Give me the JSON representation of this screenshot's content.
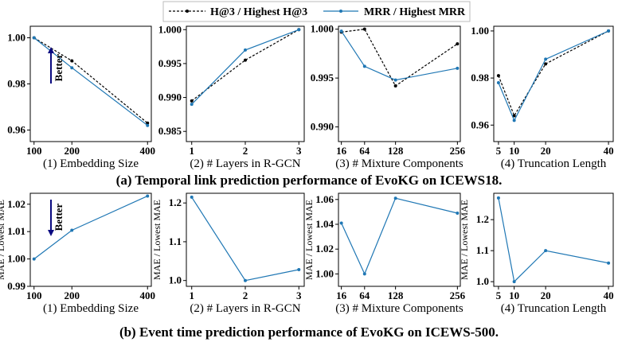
{
  "legend": {
    "black_series": "H@3 / Highest H@3",
    "blue_series": "MRR / Highest MRR"
  },
  "colors": {
    "black": "#000000",
    "blue": "#1f77b4",
    "arrow": "#0a0a80"
  },
  "better_label": "Better",
  "captions": {
    "top": "(a) Temporal link prediction performance of EvoKG on ICEWS18.",
    "bottom": "(b) Event time prediction performance of EvoKG on ICEWS-500."
  },
  "chart_data": [
    {
      "type": "line",
      "row": "a",
      "xlabel": "(1) Embedding Size",
      "ylabel": "",
      "x": [
        100,
        200,
        400
      ],
      "x_ticks": [
        "100",
        "200",
        "400"
      ],
      "xlim": [
        90,
        410
      ],
      "ylim": [
        0.955,
        1.005
      ],
      "y_ticks": [
        "0.96",
        "0.98",
        "1.00"
      ],
      "series": [
        {
          "name": "H@3 / Highest H@3",
          "style": "dashed-black",
          "values": [
            1.0,
            0.99,
            0.963
          ]
        },
        {
          "name": "MRR / Highest MRR",
          "style": "solid-blue",
          "values": [
            1.0,
            0.987,
            0.962
          ]
        }
      ],
      "better_arrow": "up"
    },
    {
      "type": "line",
      "row": "a",
      "xlabel": "(2) # Layers in R-GCN",
      "ylabel": "",
      "x": [
        1,
        2,
        3
      ],
      "x_ticks": [
        "1",
        "2",
        "3"
      ],
      "xlim": [
        0.9,
        3.1
      ],
      "ylim": [
        0.9835,
        1.0005
      ],
      "y_ticks": [
        "0.985",
        "0.990",
        "0.995",
        "1.000"
      ],
      "series": [
        {
          "name": "H@3 / Highest H@3",
          "style": "dashed-black",
          "values": [
            0.9895,
            0.9955,
            1.0
          ]
        },
        {
          "name": "MRR / Highest MRR",
          "style": "solid-blue",
          "values": [
            0.989,
            0.997,
            1.0
          ]
        }
      ]
    },
    {
      "type": "line",
      "row": "a",
      "xlabel": "(3) # Mixture Components",
      "ylabel": "",
      "x": [
        16,
        64,
        128,
        256
      ],
      "x_ticks": [
        "16",
        "64",
        "128",
        "256"
      ],
      "xlim": [
        10,
        262
      ],
      "ylim": [
        0.9885,
        1.0003
      ],
      "y_ticks": [
        "0.990",
        "0.995",
        "1.000"
      ],
      "series": [
        {
          "name": "H@3 / Highest H@3",
          "style": "dashed-black",
          "values": [
            0.9997,
            1.0,
            0.9942,
            0.9985
          ]
        },
        {
          "name": "MRR / Highest MRR",
          "style": "solid-blue",
          "values": [
            0.9998,
            0.9962,
            0.9948,
            0.996
          ]
        }
      ]
    },
    {
      "type": "line",
      "row": "a",
      "xlabel": "(4) Truncation Length",
      "ylabel": "",
      "x": [
        5,
        10,
        20,
        40
      ],
      "x_ticks": [
        "5",
        "10",
        "20",
        "40"
      ],
      "xlim": [
        3.5,
        41.5
      ],
      "ylim": [
        0.953,
        1.002
      ],
      "y_ticks": [
        "0.96",
        "0.98",
        "1.00"
      ],
      "series": [
        {
          "name": "H@3 / Highest H@3",
          "style": "dashed-black",
          "values": [
            0.981,
            0.964,
            0.986,
            1.0
          ]
        },
        {
          "name": "MRR / Highest MRR",
          "style": "solid-blue",
          "values": [
            0.978,
            0.962,
            0.988,
            1.0
          ]
        }
      ]
    },
    {
      "type": "line",
      "row": "b",
      "xlabel": "(1) Embedding Size",
      "ylabel": "MAE / Lowest MAE",
      "x": [
        100,
        200,
        400
      ],
      "x_ticks": [
        "100",
        "200",
        "400"
      ],
      "xlim": [
        90,
        410
      ],
      "ylim": [
        0.99,
        1.024
      ],
      "y_ticks": [
        "0.99",
        "1.00",
        "1.01",
        "1.02"
      ],
      "series": [
        {
          "name": "",
          "style": "solid-blue",
          "values": [
            1.0,
            1.0105,
            1.023
          ]
        }
      ],
      "better_arrow": "down"
    },
    {
      "type": "line",
      "row": "b",
      "xlabel": "(2) # Layers in R-GCN",
      "ylabel": "MAE / Lowest MAE",
      "x": [
        1,
        2,
        3
      ],
      "x_ticks": [
        "1",
        "2",
        "3"
      ],
      "xlim": [
        0.9,
        3.1
      ],
      "ylim": [
        0.985,
        1.225
      ],
      "y_ticks": [
        "1.0",
        "1.1",
        "1.2"
      ],
      "series": [
        {
          "name": "",
          "style": "solid-blue",
          "values": [
            1.215,
            1.0,
            1.028
          ]
        }
      ]
    },
    {
      "type": "line",
      "row": "b",
      "xlabel": "(3) # Mixture Components",
      "ylabel": "MAE / Lowest MAE",
      "x": [
        16,
        64,
        128,
        256
      ],
      "x_ticks": [
        "16",
        "64",
        "128",
        "256"
      ],
      "xlim": [
        10,
        262
      ],
      "ylim": [
        0.99,
        1.065
      ],
      "y_ticks": [
        "1.00",
        "1.02",
        "1.04",
        "1.06"
      ],
      "series": [
        {
          "name": "",
          "style": "solid-blue",
          "values": [
            1.041,
            1.0,
            1.061,
            1.049
          ]
        }
      ]
    },
    {
      "type": "line",
      "row": "b",
      "xlabel": "(4) Truncation Length",
      "ylabel": "MAE / Lowest MAE",
      "x": [
        5,
        10,
        20,
        40
      ],
      "x_ticks": [
        "5",
        "10",
        "20",
        "40"
      ],
      "xlim": [
        3.5,
        41.5
      ],
      "ylim": [
        0.985,
        1.285
      ],
      "y_ticks": [
        "1.0",
        "1.1",
        "1.2"
      ],
      "series": [
        {
          "name": "",
          "style": "solid-blue",
          "values": [
            1.27,
            1.0,
            1.1,
            1.06
          ]
        }
      ]
    }
  ]
}
